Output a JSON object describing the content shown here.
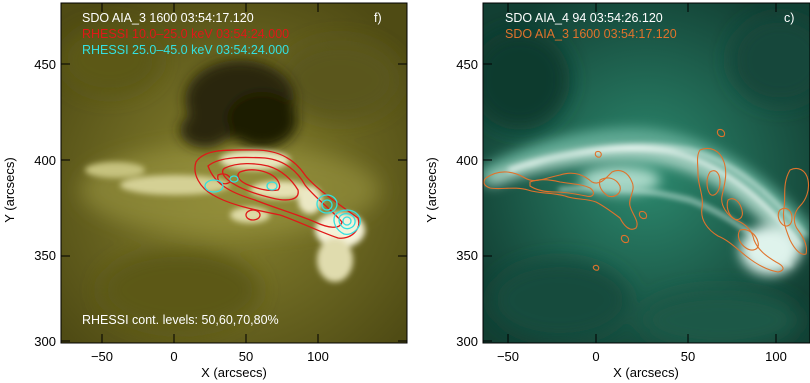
{
  "panels": [
    {
      "id": "left",
      "panel_label": "f)",
      "annotations": [
        {
          "text": "SDO AIA_3 1600   03:54:17.120",
          "color": "#ffffff"
        },
        {
          "text": "RHESSI 10.0–25.0 keV  03:54:24.000",
          "color": "#e01818"
        },
        {
          "text": "RHESSI 25.0–45.0 keV  03:54:24.000",
          "color": "#34e0e0"
        }
      ],
      "bottom_note": "RHESSI cont. levels: 50,60,70,80%",
      "background_colors": {
        "base": "#6f6b1e",
        "bright": "#f4f2d8",
        "dark": "#211f06"
      },
      "xlabel": "X (arcsecs)",
      "ylabel": "Y (arcsecs)",
      "xticks": [
        "−50",
        "0",
        "50",
        "100"
      ],
      "yticks": [
        "300",
        "350",
        "400",
        "450"
      ]
    },
    {
      "id": "right",
      "panel_label": "c)",
      "annotations": [
        {
          "text": "SDO AIA_4 94   03:54:26.120",
          "color": "#ffffff"
        },
        {
          "text": "SDO AIA_3 1600   03:54:17.120",
          "color": "#e0732c"
        }
      ],
      "background_colors": {
        "base": "#155a47",
        "bright": "#f2fbf7",
        "dark": "#08281f"
      },
      "xlabel": "X (arcsecs)",
      "ylabel": "Y (arcsecs)",
      "xticks": [
        "−50",
        "0",
        "50",
        "100"
      ],
      "yticks": [
        "300",
        "350",
        "400",
        "450"
      ]
    }
  ]
}
